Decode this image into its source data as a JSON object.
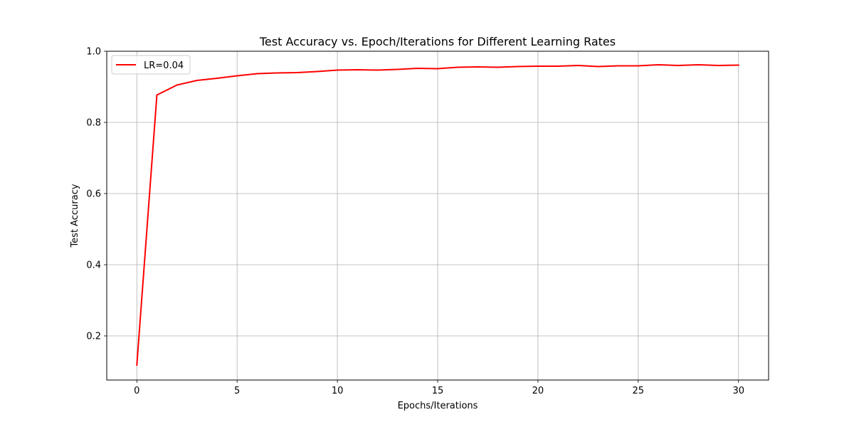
{
  "chart_data": {
    "type": "line",
    "title": "Test Accuracy vs. Epoch/Iterations for Different Learning Rates",
    "xlabel": "Epochs/Iterations",
    "ylabel": "Test Accuracy",
    "xlim": [
      -1.5,
      31.5
    ],
    "ylim": [
      0.076,
      1.0
    ],
    "xticks": [
      0,
      5,
      10,
      15,
      20,
      25,
      30
    ],
    "yticks": [
      0.2,
      0.4,
      0.6,
      0.8,
      1.0
    ],
    "xtick_labels": [
      "0",
      "5",
      "10",
      "15",
      "20",
      "25",
      "30"
    ],
    "ytick_labels": [
      "0.2",
      "0.4",
      "0.6",
      "0.8",
      "1.0"
    ],
    "grid": true,
    "legend_position": "upper-left",
    "x": [
      0,
      1,
      2,
      3,
      4,
      5,
      6,
      7,
      8,
      9,
      10,
      11,
      12,
      13,
      14,
      15,
      16,
      17,
      18,
      19,
      20,
      21,
      22,
      23,
      24,
      25,
      26,
      27,
      28,
      29,
      30
    ],
    "series": [
      {
        "name": "LR=0.04",
        "color": "#ff0000",
        "values": [
          0.118,
          0.877,
          0.905,
          0.918,
          0.924,
          0.931,
          0.937,
          0.939,
          0.94,
          0.943,
          0.947,
          0.948,
          0.947,
          0.949,
          0.952,
          0.951,
          0.955,
          0.956,
          0.955,
          0.957,
          0.958,
          0.958,
          0.96,
          0.957,
          0.959,
          0.959,
          0.962,
          0.96,
          0.962,
          0.96,
          0.961
        ]
      }
    ],
    "colors": {
      "grid": "#b0b0b0",
      "axes": "#000000"
    }
  }
}
